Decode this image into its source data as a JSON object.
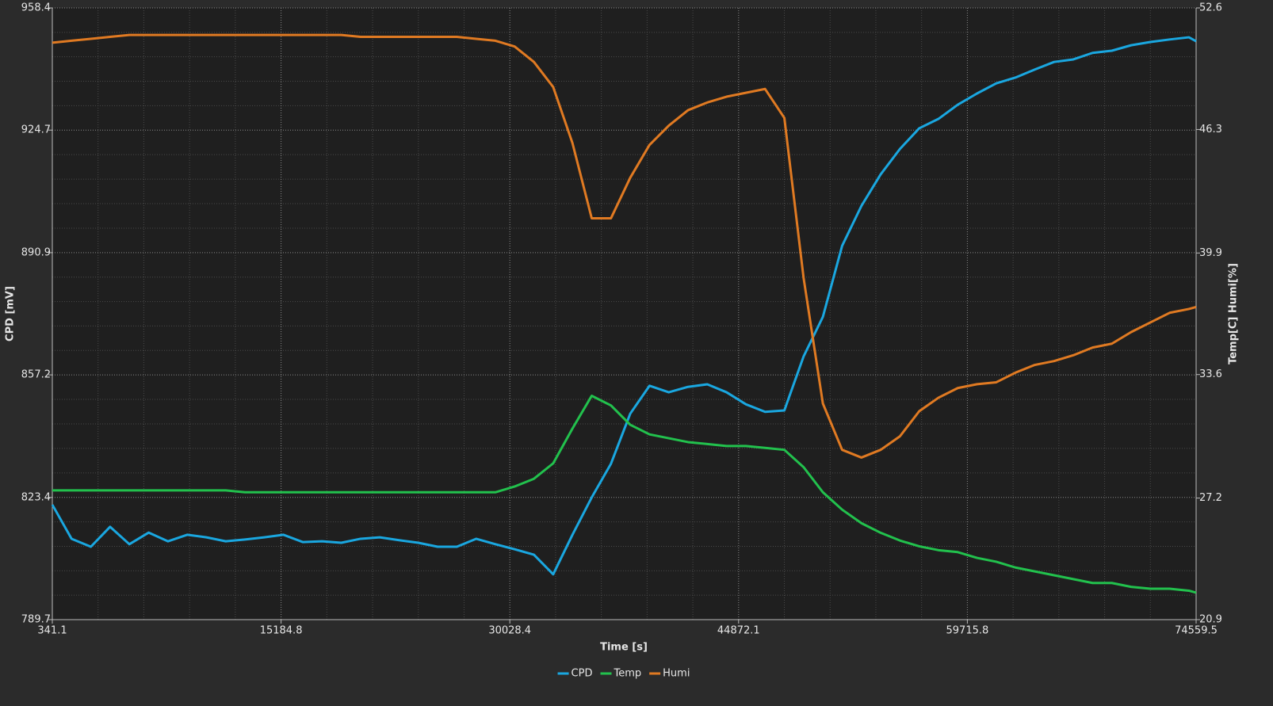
{
  "chart_data": {
    "type": "line",
    "x_label": "Time [s]",
    "y_label": "CPD [mV]",
    "y2_label": "Temp[C] Humi[%]",
    "x": [
      341.1,
      1591.1,
      2841.1,
      4091.1,
      5341.1,
      6591.1,
      7841.1,
      9091.1,
      10341.1,
      11591.1,
      12841.1,
      14091.1,
      15341.1,
      16591.1,
      17841.1,
      19091.1,
      20341.1,
      21591.1,
      22841.1,
      24091.1,
      25341.1,
      26591.1,
      27841.1,
      29091.1,
      30341.1,
      31591.1,
      32841.1,
      34091.1,
      35341.1,
      36591.1,
      37841.1,
      39091.1,
      40341.1,
      41591.1,
      42841.1,
      44091.1,
      45341.1,
      46591.1,
      47841.1,
      49091.1,
      50341.1,
      51591.1,
      52841.1,
      54091.1,
      55341.1,
      56591.1,
      57841.1,
      59091.1,
      60341.1,
      61591.1,
      62841.1,
      64091.1,
      65341.1,
      66591.1,
      67841.1,
      69091.1,
      70341.1,
      71591.1,
      72841.1,
      74091.1,
      74559.5
    ],
    "series": [
      {
        "name": "CPD",
        "color": "#1aa7e0",
        "values": [
          821.4,
          812.0,
          809.8,
          815.3,
          810.5,
          813.7,
          811.3,
          813.1,
          812.4,
          811.3,
          811.8,
          812.4,
          813.1,
          811.1,
          811.3,
          810.9,
          812.0,
          812.4,
          811.6,
          810.9,
          809.8,
          809.8,
          812.0,
          810.5,
          809.1,
          807.6,
          802.2,
          813.1,
          823.4,
          832.7,
          846.5,
          854.2,
          852.4,
          853.9,
          854.6,
          852.4,
          849.1,
          847.0,
          847.4,
          862.3,
          873.2,
          892.8,
          903.8,
          912.5,
          919.5,
          925.2,
          927.8,
          931.7,
          934.8,
          937.6,
          939.2,
          941.4,
          943.5,
          944.2,
          946.0,
          946.6,
          948.1,
          949.0,
          949.7,
          950.3,
          949.2
        ]
      },
      {
        "name": "Temp",
        "color": "#22c14d",
        "axis": "y2",
        "values": [
          27.6,
          27.6,
          27.6,
          27.6,
          27.6,
          27.6,
          27.6,
          27.6,
          27.6,
          27.6,
          27.5,
          27.5,
          27.5,
          27.5,
          27.5,
          27.5,
          27.5,
          27.5,
          27.5,
          27.5,
          27.5,
          27.5,
          27.5,
          27.5,
          27.8,
          28.2,
          29.0,
          30.8,
          32.5,
          32.0,
          31.0,
          30.5,
          30.3,
          30.1,
          30.0,
          29.9,
          29.9,
          29.8,
          29.7,
          28.8,
          27.5,
          26.6,
          25.9,
          25.4,
          25.0,
          24.7,
          24.5,
          24.4,
          24.1,
          23.9,
          23.6,
          23.4,
          23.2,
          23.0,
          22.8,
          22.8,
          22.6,
          22.5,
          22.5,
          22.4,
          22.3
        ]
      },
      {
        "name": "Humi",
        "color": "#e07a22",
        "axis": "y2",
        "values": [
          50.8,
          50.9,
          51.0,
          51.1,
          51.2,
          51.2,
          51.2,
          51.2,
          51.2,
          51.2,
          51.2,
          51.2,
          51.2,
          51.2,
          51.2,
          51.2,
          51.1,
          51.1,
          51.1,
          51.1,
          51.1,
          51.1,
          51.0,
          50.9,
          50.6,
          49.8,
          48.5,
          45.6,
          41.7,
          41.7,
          43.8,
          45.5,
          46.5,
          47.3,
          47.7,
          48.0,
          48.2,
          48.4,
          46.9,
          38.6,
          32.1,
          29.7,
          29.3,
          29.7,
          30.4,
          31.7,
          32.4,
          32.9,
          33.1,
          33.2,
          33.7,
          34.1,
          34.3,
          34.6,
          35.0,
          35.2,
          35.8,
          36.3,
          36.8,
          37.0,
          37.1
        ]
      }
    ],
    "xlim": [
      341.1,
      74559.5
    ],
    "xticks": [
      341.1,
      15184.8,
      30028.4,
      44872.1,
      59715.8,
      74559.5
    ],
    "ylim": [
      789.7,
      958.4
    ],
    "yticks": [
      789.7,
      823.4,
      857.2,
      890.9,
      924.7,
      958.4
    ],
    "y2lim": [
      20.9,
      52.6
    ],
    "y2ticks": [
      20.9,
      27.2,
      33.6,
      39.9,
      46.3,
      52.6
    ],
    "grid": true,
    "minor_grid": 5,
    "legend": "bottom"
  }
}
